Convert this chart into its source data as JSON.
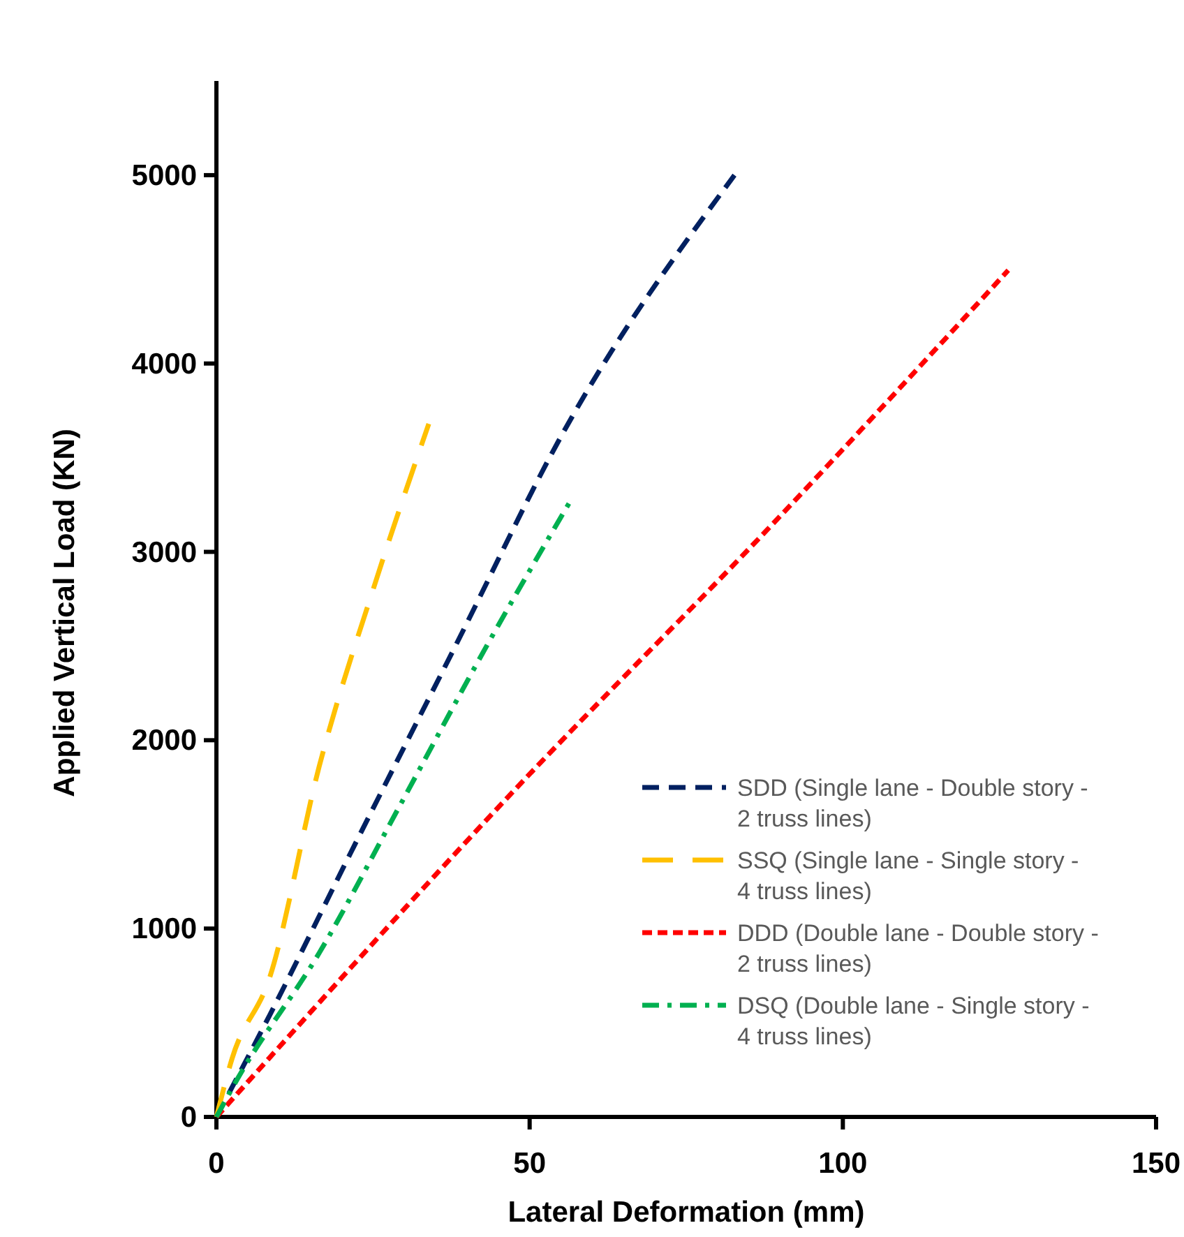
{
  "chart_data": {
    "type": "line",
    "xlabel": "Lateral Deformation (mm)",
    "ylabel": "Applied Vertical Load (KN)",
    "xlim": [
      0,
      150
    ],
    "xticks": [
      0,
      50,
      100,
      150
    ],
    "ylim": [
      0,
      5500
    ],
    "yticks": [
      0,
      1000,
      2000,
      3000,
      4000,
      5000
    ],
    "grid": false,
    "legend": "bottom right",
    "marker": "none",
    "series": [
      {
        "name": "SDD (Single lane - Double story - 2 truss lines)",
        "color": "#002060",
        "line_style": "dashed",
        "x": [
          0,
          8.5,
          21.4,
          38.3,
          55.3,
          82.7
        ],
        "values": [
          0,
          540,
          1400,
          2510,
          3630,
          5000
        ]
      },
      {
        "name": "SSQ (Single lane - Single story - 4 truss lines)",
        "color": "#ffc000",
        "line_style": "dashed",
        "x": [
          0,
          2.5,
          8.5,
          16.4,
          25.4,
          33.9
        ],
        "values": [
          0,
          310,
          740,
          1860,
          2840,
          3680
        ]
      },
      {
        "name": "DDD (Double lane - Double story - 2 truss lines)",
        "color": "#ff0000",
        "line_style": "dotted",
        "x": [
          0,
          48,
          88,
          126.4
        ],
        "values": [
          0,
          1750,
          3120,
          4495
        ]
      },
      {
        "name": "DSQ (Double lane - Single story - 4 truss lines)",
        "color": "#00b050",
        "line_style": "dashdot",
        "x": [
          0,
          3.5,
          16.4,
          29.4,
          43.3,
          56.5
        ],
        "values": [
          0,
          210,
          870,
          1660,
          2510,
          3270
        ]
      }
    ]
  }
}
